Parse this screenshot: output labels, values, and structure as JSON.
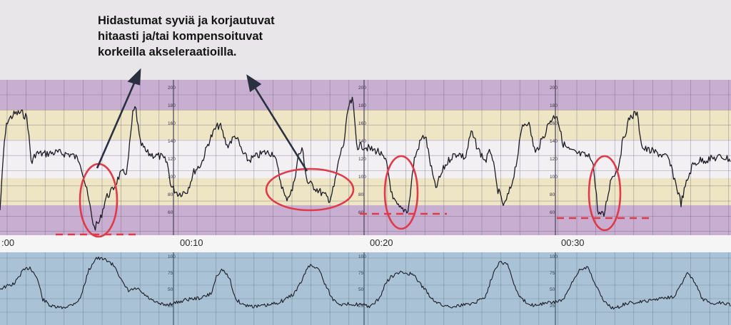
{
  "annotation": {
    "lines": [
      "Hidastumat syviä ja korjautuvat",
      "hitaasti ja/tai kompensoituvat",
      "korkeilla akseleraatioilla."
    ]
  },
  "time_axis": {
    "labels": [
      ":00",
      "00:10",
      "00:20",
      "00:30"
    ]
  },
  "fhr_scale": {
    "ticks": [
      "200",
      "180",
      "160",
      "140",
      "120",
      "100",
      "80",
      "60"
    ]
  },
  "toco_scale": {
    "ticks": [
      "100",
      "75",
      "50",
      "25"
    ]
  },
  "colors": {
    "band_purple": "#c8aed0",
    "band_yellow": "#ede5c4",
    "band_white": "#f3f0f4",
    "toco_bg": "#a9c2d6",
    "trace": "#1c1c26",
    "highlight_red": "#e03a4a",
    "arrow": "#2a3040"
  }
}
